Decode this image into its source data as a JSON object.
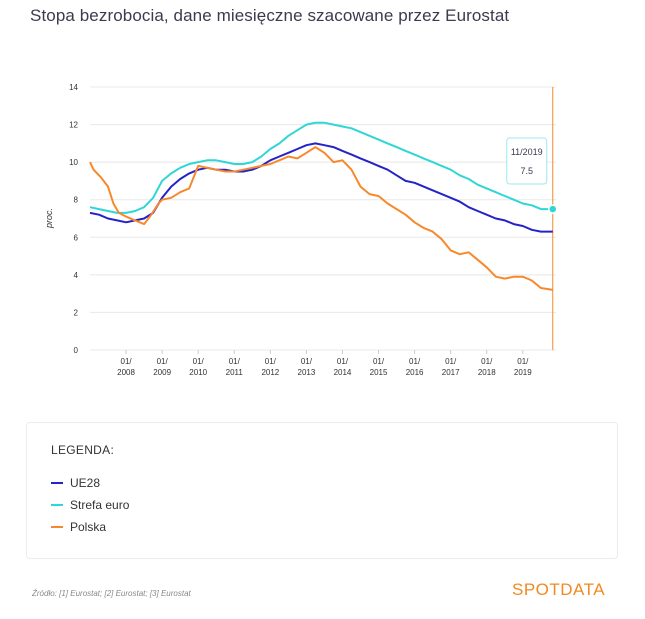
{
  "title": "Stopa bezrobocia, dane miesięczne szacowane przez Eurostat",
  "legend": {
    "title": "LEGENDA:",
    "items": [
      {
        "label": "UE28",
        "color": "#2323c8"
      },
      {
        "label": "Strefa euro",
        "color": "#2fd6d6"
      },
      {
        "label": "Polska",
        "color": "#f7892b"
      }
    ]
  },
  "source": "Źródło: [1] Eurostat; [2] Eurostat; [3] Eurostat",
  "logo": "SPOTDATA",
  "chart_data": {
    "type": "line",
    "ylabel": "proc.",
    "ylim": [
      0,
      14
    ],
    "yticks": [
      0,
      2,
      4,
      6,
      8,
      10,
      12,
      14
    ],
    "xlim": [
      2007.0,
      2019.92
    ],
    "xticks": [
      {
        "value": 2008.0,
        "line1": "01/",
        "line2": "2008"
      },
      {
        "value": 2009.0,
        "line1": "01/",
        "line2": "2009"
      },
      {
        "value": 2010.0,
        "line1": "01/",
        "line2": "2010"
      },
      {
        "value": 2011.0,
        "line1": "01/",
        "line2": "2011"
      },
      {
        "value": 2012.0,
        "line1": "01/",
        "line2": "2012"
      },
      {
        "value": 2013.0,
        "line1": "01/",
        "line2": "2013"
      },
      {
        "value": 2014.0,
        "line1": "01/",
        "line2": "2014"
      },
      {
        "value": 2015.0,
        "line1": "01/",
        "line2": "2015"
      },
      {
        "value": 2016.0,
        "line1": "01/",
        "line2": "2016"
      },
      {
        "value": 2017.0,
        "line1": "01/",
        "line2": "2017"
      },
      {
        "value": 2018.0,
        "line1": "01/",
        "line2": "2018"
      },
      {
        "value": 2019.0,
        "line1": "01/",
        "line2": "2019"
      }
    ],
    "grid": true,
    "legend_position": "below",
    "tooltip": {
      "label": "11/2019",
      "value": "7.5",
      "x": 2019.83,
      "y": 7.5
    },
    "series": [
      {
        "name": "UE28",
        "color": "#2323c8",
        "points": [
          [
            2007.0,
            7.3
          ],
          [
            2007.25,
            7.2
          ],
          [
            2007.5,
            7.0
          ],
          [
            2007.75,
            6.9
          ],
          [
            2008.0,
            6.8
          ],
          [
            2008.25,
            6.9
          ],
          [
            2008.5,
            7.0
          ],
          [
            2008.75,
            7.3
          ],
          [
            2009.0,
            8.1
          ],
          [
            2009.25,
            8.7
          ],
          [
            2009.5,
            9.1
          ],
          [
            2009.75,
            9.4
          ],
          [
            2010.0,
            9.6
          ],
          [
            2010.25,
            9.7
          ],
          [
            2010.5,
            9.6
          ],
          [
            2010.75,
            9.6
          ],
          [
            2011.0,
            9.5
          ],
          [
            2011.25,
            9.5
          ],
          [
            2011.5,
            9.6
          ],
          [
            2011.75,
            9.8
          ],
          [
            2012.0,
            10.1
          ],
          [
            2012.25,
            10.3
          ],
          [
            2012.5,
            10.5
          ],
          [
            2012.75,
            10.7
          ],
          [
            2013.0,
            10.9
          ],
          [
            2013.25,
            11.0
          ],
          [
            2013.5,
            10.9
          ],
          [
            2013.75,
            10.8
          ],
          [
            2014.0,
            10.6
          ],
          [
            2014.25,
            10.4
          ],
          [
            2014.5,
            10.2
          ],
          [
            2014.75,
            10.0
          ],
          [
            2015.0,
            9.8
          ],
          [
            2015.25,
            9.6
          ],
          [
            2015.5,
            9.3
          ],
          [
            2015.75,
            9.0
          ],
          [
            2016.0,
            8.9
          ],
          [
            2016.25,
            8.7
          ],
          [
            2016.5,
            8.5
          ],
          [
            2016.75,
            8.3
          ],
          [
            2017.0,
            8.1
          ],
          [
            2017.25,
            7.9
          ],
          [
            2017.5,
            7.6
          ],
          [
            2017.75,
            7.4
          ],
          [
            2018.0,
            7.2
          ],
          [
            2018.25,
            7.0
          ],
          [
            2018.5,
            6.9
          ],
          [
            2018.75,
            6.7
          ],
          [
            2019.0,
            6.6
          ],
          [
            2019.25,
            6.4
          ],
          [
            2019.5,
            6.3
          ],
          [
            2019.83,
            6.3
          ]
        ]
      },
      {
        "name": "Strefa euro",
        "color": "#2fd6d6",
        "points": [
          [
            2007.0,
            7.6
          ],
          [
            2007.25,
            7.5
          ],
          [
            2007.5,
            7.4
          ],
          [
            2007.75,
            7.3
          ],
          [
            2008.0,
            7.3
          ],
          [
            2008.25,
            7.4
          ],
          [
            2008.5,
            7.6
          ],
          [
            2008.75,
            8.1
          ],
          [
            2009.0,
            9.0
          ],
          [
            2009.25,
            9.4
          ],
          [
            2009.5,
            9.7
          ],
          [
            2009.75,
            9.9
          ],
          [
            2010.0,
            10.0
          ],
          [
            2010.25,
            10.1
          ],
          [
            2010.5,
            10.1
          ],
          [
            2010.75,
            10.0
          ],
          [
            2011.0,
            9.9
          ],
          [
            2011.25,
            9.9
          ],
          [
            2011.5,
            10.0
          ],
          [
            2011.75,
            10.3
          ],
          [
            2012.0,
            10.7
          ],
          [
            2012.25,
            11.0
          ],
          [
            2012.5,
            11.4
          ],
          [
            2012.75,
            11.7
          ],
          [
            2013.0,
            12.0
          ],
          [
            2013.25,
            12.1
          ],
          [
            2013.5,
            12.1
          ],
          [
            2013.75,
            12.0
          ],
          [
            2014.0,
            11.9
          ],
          [
            2014.25,
            11.8
          ],
          [
            2014.5,
            11.6
          ],
          [
            2014.75,
            11.4
          ],
          [
            2015.0,
            11.2
          ],
          [
            2015.25,
            11.0
          ],
          [
            2015.5,
            10.8
          ],
          [
            2015.75,
            10.6
          ],
          [
            2016.0,
            10.4
          ],
          [
            2016.25,
            10.2
          ],
          [
            2016.5,
            10.0
          ],
          [
            2016.75,
            9.8
          ],
          [
            2017.0,
            9.6
          ],
          [
            2017.25,
            9.3
          ],
          [
            2017.5,
            9.1
          ],
          [
            2017.75,
            8.8
          ],
          [
            2018.0,
            8.6
          ],
          [
            2018.25,
            8.4
          ],
          [
            2018.5,
            8.2
          ],
          [
            2018.75,
            8.0
          ],
          [
            2019.0,
            7.8
          ],
          [
            2019.25,
            7.7
          ],
          [
            2019.5,
            7.5
          ],
          [
            2019.83,
            7.5
          ]
        ]
      },
      {
        "name": "Polska",
        "color": "#f7892b",
        "points": [
          [
            2007.0,
            10.0
          ],
          [
            2007.1,
            9.6
          ],
          [
            2007.3,
            9.2
          ],
          [
            2007.5,
            8.7
          ],
          [
            2007.65,
            7.8
          ],
          [
            2007.8,
            7.3
          ],
          [
            2008.0,
            7.1
          ],
          [
            2008.25,
            6.9
          ],
          [
            2008.5,
            6.7
          ],
          [
            2008.7,
            7.2
          ],
          [
            2008.9,
            7.8
          ],
          [
            2009.0,
            8.0
          ],
          [
            2009.25,
            8.1
          ],
          [
            2009.5,
            8.4
          ],
          [
            2009.75,
            8.6
          ],
          [
            2010.0,
            9.8
          ],
          [
            2010.25,
            9.7
          ],
          [
            2010.5,
            9.6
          ],
          [
            2010.75,
            9.5
          ],
          [
            2011.0,
            9.5
          ],
          [
            2011.25,
            9.6
          ],
          [
            2011.5,
            9.7
          ],
          [
            2011.75,
            9.8
          ],
          [
            2012.0,
            9.9
          ],
          [
            2012.25,
            10.1
          ],
          [
            2012.5,
            10.3
          ],
          [
            2012.75,
            10.2
          ],
          [
            2013.0,
            10.5
          ],
          [
            2013.25,
            10.8
          ],
          [
            2013.5,
            10.5
          ],
          [
            2013.75,
            10.0
          ],
          [
            2014.0,
            10.1
          ],
          [
            2014.25,
            9.6
          ],
          [
            2014.5,
            8.7
          ],
          [
            2014.75,
            8.3
          ],
          [
            2015.0,
            8.2
          ],
          [
            2015.25,
            7.8
          ],
          [
            2015.5,
            7.5
          ],
          [
            2015.75,
            7.2
          ],
          [
            2016.0,
            6.8
          ],
          [
            2016.25,
            6.5
          ],
          [
            2016.5,
            6.3
          ],
          [
            2016.75,
            5.9
          ],
          [
            2017.0,
            5.3
          ],
          [
            2017.25,
            5.1
          ],
          [
            2017.5,
            5.2
          ],
          [
            2017.75,
            4.8
          ],
          [
            2018.0,
            4.4
          ],
          [
            2018.25,
            3.9
          ],
          [
            2018.5,
            3.8
          ],
          [
            2018.75,
            3.9
          ],
          [
            2019.0,
            3.9
          ],
          [
            2019.25,
            3.7
          ],
          [
            2019.5,
            3.3
          ],
          [
            2019.83,
            3.2
          ]
        ]
      }
    ]
  }
}
